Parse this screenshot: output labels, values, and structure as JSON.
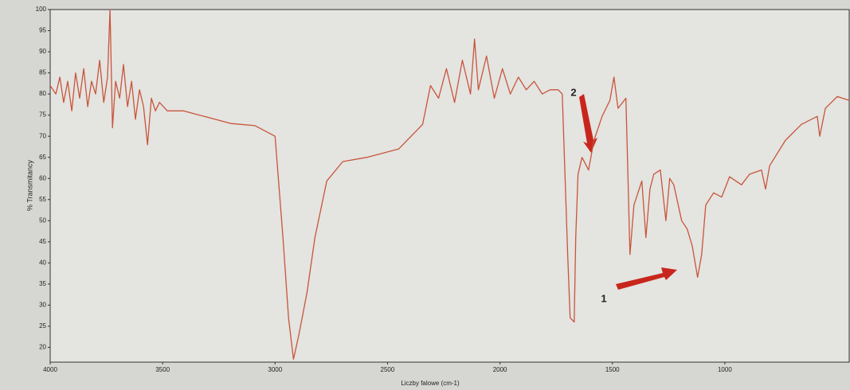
{
  "chart_data": {
    "type": "line",
    "xlabel": "Liczby falowe (cm-1)",
    "ylabel": "% Transmitancy",
    "color": "#c8553a",
    "xlim": [
      4000,
      447
    ],
    "ylim": [
      16.5,
      100
    ],
    "xticks": [
      4000,
      3500,
      3000,
      2500,
      2000,
      1500,
      1000
    ],
    "yticks": [
      20,
      25,
      30,
      35,
      40,
      45,
      50,
      55,
      60,
      65,
      70,
      75,
      80,
      85,
      90,
      95,
      100
    ],
    "grid": false,
    "annotations": [
      "2",
      "1"
    ],
    "x": [
      4000,
      3975,
      3957,
      3940,
      3922,
      3904,
      3887,
      3869,
      3851,
      3833,
      3816,
      3798,
      3780,
      3762,
      3745,
      3734,
      3723,
      3709,
      3691,
      3674,
      3656,
      3638,
      3621,
      3603,
      3585,
      3567,
      3550,
      3532,
      3514,
      3479,
      3408,
      3337,
      3266,
      3195,
      3089,
      3000,
      2965,
      2940,
      2918,
      2894,
      2858,
      2823,
      2770,
      2699,
      2592,
      2450,
      2344,
      2309,
      2273,
      2238,
      2202,
      2167,
      2131,
      2113,
      2096,
      2060,
      2025,
      1989,
      1954,
      1918,
      1883,
      1848,
      1812,
      1777,
      1741,
      1723,
      1699,
      1688,
      1670,
      1663,
      1653,
      1635,
      1606,
      1582,
      1546,
      1511,
      1493,
      1475,
      1440,
      1422,
      1404,
      1369,
      1351,
      1333,
      1316,
      1287,
      1262,
      1245,
      1227,
      1192,
      1167,
      1145,
      1121,
      1103,
      1085,
      1050,
      1014,
      979,
      926,
      890,
      837,
      819,
      801,
      731,
      660,
      589,
      578,
      553,
      500,
      447
    ],
    "values": [
      82,
      80,
      84,
      78,
      83,
      76,
      85,
      79,
      86,
      77,
      83,
      80,
      88,
      78,
      84,
      100,
      72,
      83,
      79,
      87,
      77,
      83,
      74,
      81,
      77,
      68,
      79,
      76,
      78,
      76,
      76,
      75,
      74,
      73,
      72.5,
      70,
      46,
      27,
      17.2,
      23,
      33,
      46,
      59.4,
      64,
      65,
      67,
      72.8,
      82,
      79,
      86,
      78,
      88,
      80,
      93,
      81,
      89,
      79,
      86,
      80,
      84,
      81,
      83,
      80,
      81,
      81,
      80,
      42,
      27,
      26,
      46,
      61,
      65,
      62,
      69,
      74.7,
      78.5,
      84,
      76.6,
      79,
      42,
      53.7,
      59.4,
      46,
      57.5,
      61,
      62,
      50,
      60,
      58.5,
      50,
      48,
      44,
      36.6,
      42,
      53.7,
      56.6,
      55.6,
      60.4,
      58.5,
      61,
      62,
      57.5,
      63,
      69,
      72.8,
      74.7,
      70,
      76.6,
      79.4,
      78.5
    ]
  }
}
